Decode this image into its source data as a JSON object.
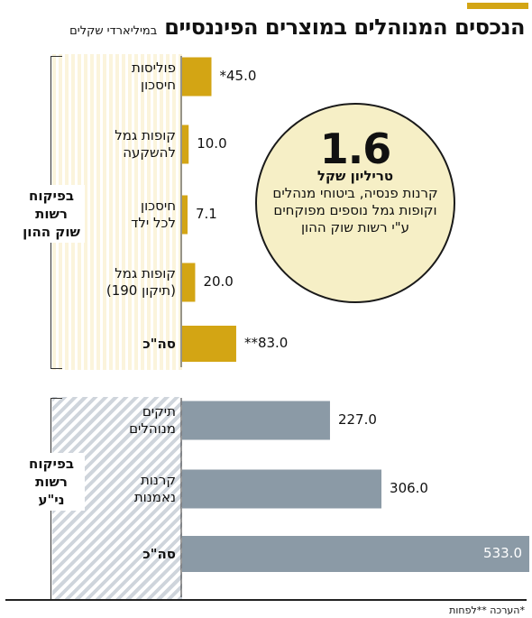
{
  "header": {
    "title": "הנכסים המנוהלים במוצרים הפיננסיים",
    "subtitle": "במיליארדי שקלים",
    "accent_color": "#d3a514"
  },
  "groups": [
    {
      "label_lines": [
        "בפיקוח",
        "רשות",
        "שוק ההון"
      ]
    },
    {
      "label_lines": [
        "בפיקוח",
        "רשות",
        "ני\"ע"
      ]
    }
  ],
  "callout": {
    "value": "1.6",
    "highlight": "טריליון שקל",
    "text": "קרנות פנסיה, ביטוחי מנהלים וקופות גמל נוספים מפוקחים ע\"י רשות שוק ההון"
  },
  "chart_data": {
    "type": "bar",
    "orientation": "horizontal",
    "xlim": [
      0,
      533
    ],
    "colors": {
      "capital_market": "#d3a514",
      "securities": "#8b9aa6"
    },
    "series": [
      {
        "name": "בפיקוח רשות שוק ההון",
        "categories": [
          [
            "פוליסות",
            "חיסכון"
          ],
          [
            "קופות גמל",
            "להשקעה"
          ],
          [
            "חיסכון",
            "לכל ילד"
          ],
          [
            "קופות גמל",
            "(תיקון 190)"
          ],
          [
            "סה\"כ"
          ]
        ],
        "values": [
          45.0,
          10.0,
          7.1,
          20.0,
          83.0
        ],
        "labels": [
          "*45.0",
          "10.0",
          "7.1",
          "20.0",
          "**83.0"
        ]
      },
      {
        "name": "בפיקוח רשות ני\"ע",
        "categories": [
          [
            "תיקים",
            "מנוהלים"
          ],
          [
            "קרנות",
            "נאמנות"
          ],
          [
            "סה\"כ"
          ]
        ],
        "values": [
          227.0,
          306.0,
          533.0
        ],
        "labels": [
          "227.0",
          "306.0",
          "533.0"
        ]
      }
    ]
  },
  "footnote": "*הערכה **לפחות"
}
